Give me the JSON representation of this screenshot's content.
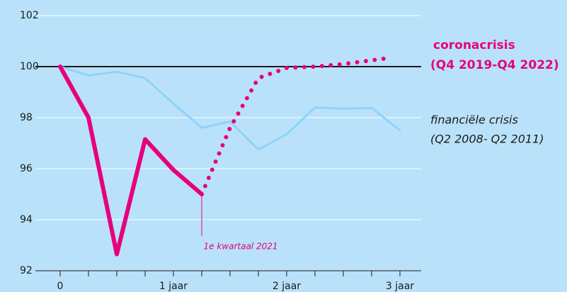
{
  "chart_data": {
    "type": "line",
    "xlim": [
      0,
      12
    ],
    "ylim": [
      92,
      102
    ],
    "xticks": [
      0,
      {
        "value": 4,
        "label": "1 jaar"
      },
      {
        "value": 8,
        "label": "2 jaar"
      },
      {
        "value": 12,
        "label": "3 jaar"
      }
    ],
    "xminor_ticks": [
      1,
      2,
      3,
      5,
      6,
      7,
      9,
      10,
      11
    ],
    "yticks": [
      92,
      94,
      96,
      98,
      100,
      102
    ],
    "grid": true,
    "reference_line": 100,
    "series": [
      {
        "name": "financiële crisis",
        "period": "(Q2 2008- Q2 2011)",
        "color": "#8fd3fb",
        "x": [
          0,
          1,
          2,
          3,
          4,
          5,
          6,
          7,
          8,
          9,
          10,
          11,
          12
        ],
        "values": [
          100,
          99.65,
          99.8,
          99.55,
          98.55,
          97.6,
          97.85,
          96.75,
          97.35,
          98.4,
          98.35,
          98.38,
          97.5
        ]
      },
      {
        "name": "coronacrisis",
        "period": "(Q4 2019-Q4 2022)",
        "color": "#e6007e",
        "x": [
          0,
          1,
          2,
          3,
          4,
          5
        ],
        "values": [
          100,
          98.0,
          92.65,
          97.15,
          95.95,
          95.0
        ],
        "projection": {
          "x": [
            5,
            6,
            7,
            8,
            9,
            10,
            11,
            11.7
          ],
          "values": [
            95.0,
            97.6,
            99.55,
            99.95,
            100.0,
            100.1,
            100.25,
            100.35
          ]
        }
      }
    ],
    "annotation": {
      "text": "1e kwartaal 2021",
      "x": 5,
      "y": 95.0
    }
  }
}
